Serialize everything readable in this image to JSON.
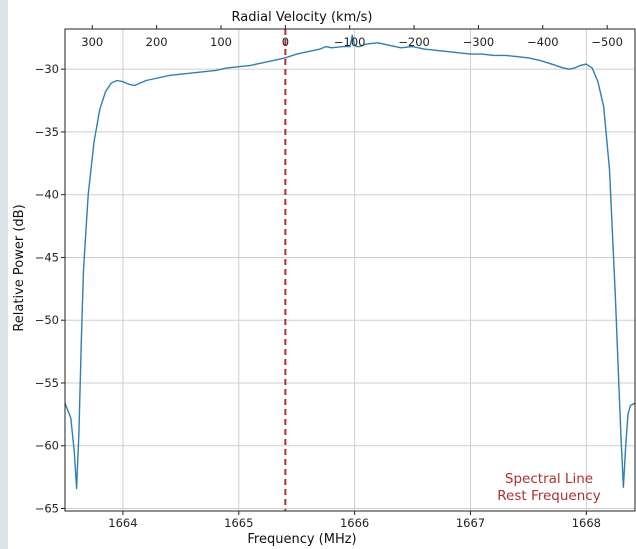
{
  "chart_data": {
    "type": "line",
    "title": "",
    "xlabel": "Frequency (MHz)",
    "ylabel": "Relative Power (dB)",
    "top_xlabel": "Radial Velocity (km/s)",
    "xlim": [
      1663.5,
      1668.42
    ],
    "ylim": [
      -65.2,
      -26.8
    ],
    "xticks": [
      {
        "value": 1664,
        "label": "1664"
      },
      {
        "value": 1665,
        "label": "1665"
      },
      {
        "value": 1666,
        "label": "1666"
      },
      {
        "value": 1667,
        "label": "1667"
      },
      {
        "value": 1668,
        "label": "1668"
      }
    ],
    "yticks": [
      {
        "value": -30,
        "label": "−30"
      },
      {
        "value": -35,
        "label": "−35"
      },
      {
        "value": -40,
        "label": "−40"
      },
      {
        "value": -45,
        "label": "−45"
      },
      {
        "value": -50,
        "label": "−50"
      },
      {
        "value": -55,
        "label": "−55"
      },
      {
        "value": -60,
        "label": "−60"
      },
      {
        "value": -65,
        "label": "−65"
      }
    ],
    "top_ticks": [
      {
        "value": 300,
        "label": "300"
      },
      {
        "value": 200,
        "label": "200"
      },
      {
        "value": 100,
        "label": "100"
      },
      {
        "value": 0,
        "label": "0"
      },
      {
        "value": -100,
        "label": "−100"
      },
      {
        "value": -200,
        "label": "−200"
      },
      {
        "value": -300,
        "label": "−300"
      },
      {
        "value": -400,
        "label": "−400"
      },
      {
        "value": -500,
        "label": "−500"
      }
    ],
    "velocity_axis": {
      "zero_freq_MHz": 1665.402,
      "km_s_per_MHz": -180.0
    },
    "grid": true,
    "rest_frequency": {
      "x": 1665.402,
      "color": "#b03030",
      "style": "dashed",
      "label_line1": "Spectral Line",
      "label_line2": "Rest Frequency"
    },
    "series": [
      {
        "color": "#2e7fb4",
        "x": [
          1663.5,
          1663.55,
          1663.58,
          1663.6,
          1663.62,
          1663.64,
          1663.66,
          1663.7,
          1663.75,
          1663.8,
          1663.85,
          1663.9,
          1663.95,
          1664.0,
          1664.05,
          1664.1,
          1664.15,
          1664.2,
          1664.3,
          1664.4,
          1664.5,
          1664.6,
          1664.7,
          1664.8,
          1664.9,
          1665.0,
          1665.1,
          1665.2,
          1665.3,
          1665.4,
          1665.5,
          1665.6,
          1665.7,
          1665.75,
          1665.8,
          1665.9,
          1665.96,
          1665.98,
          1666.0,
          1666.02,
          1666.04,
          1666.1,
          1666.2,
          1666.3,
          1666.4,
          1666.5,
          1666.6,
          1666.7,
          1666.8,
          1666.9,
          1667.0,
          1667.1,
          1667.2,
          1667.3,
          1667.4,
          1667.5,
          1667.6,
          1667.7,
          1667.8,
          1667.85,
          1667.9,
          1667.95,
          1668.0,
          1668.05,
          1668.1,
          1668.15,
          1668.2,
          1668.25,
          1668.28,
          1668.3,
          1668.32,
          1668.34,
          1668.36,
          1668.38,
          1668.42
        ],
        "y": [
          -56.6,
          -57.8,
          -60.5,
          -63.4,
          -59.0,
          -52.0,
          -46.0,
          -40.0,
          -35.8,
          -33.2,
          -31.8,
          -31.1,
          -30.9,
          -31.0,
          -31.2,
          -31.3,
          -31.1,
          -30.9,
          -30.7,
          -30.5,
          -30.4,
          -30.3,
          -30.2,
          -30.1,
          -29.9,
          -29.8,
          -29.7,
          -29.5,
          -29.3,
          -29.1,
          -28.8,
          -28.6,
          -28.4,
          -28.2,
          -28.3,
          -28.2,
          -28.2,
          -27.3,
          -28.1,
          -28.2,
          -28.2,
          -28.0,
          -27.9,
          -28.1,
          -28.3,
          -28.2,
          -28.4,
          -28.5,
          -28.6,
          -28.7,
          -28.8,
          -28.8,
          -28.9,
          -28.9,
          -29.0,
          -29.1,
          -29.3,
          -29.6,
          -29.9,
          -30.0,
          -29.9,
          -29.7,
          -29.6,
          -29.9,
          -31.0,
          -33.0,
          -38.0,
          -48.0,
          -55.0,
          -59.5,
          -63.3,
          -60.0,
          -57.5,
          -56.8,
          -56.6
        ]
      }
    ]
  }
}
